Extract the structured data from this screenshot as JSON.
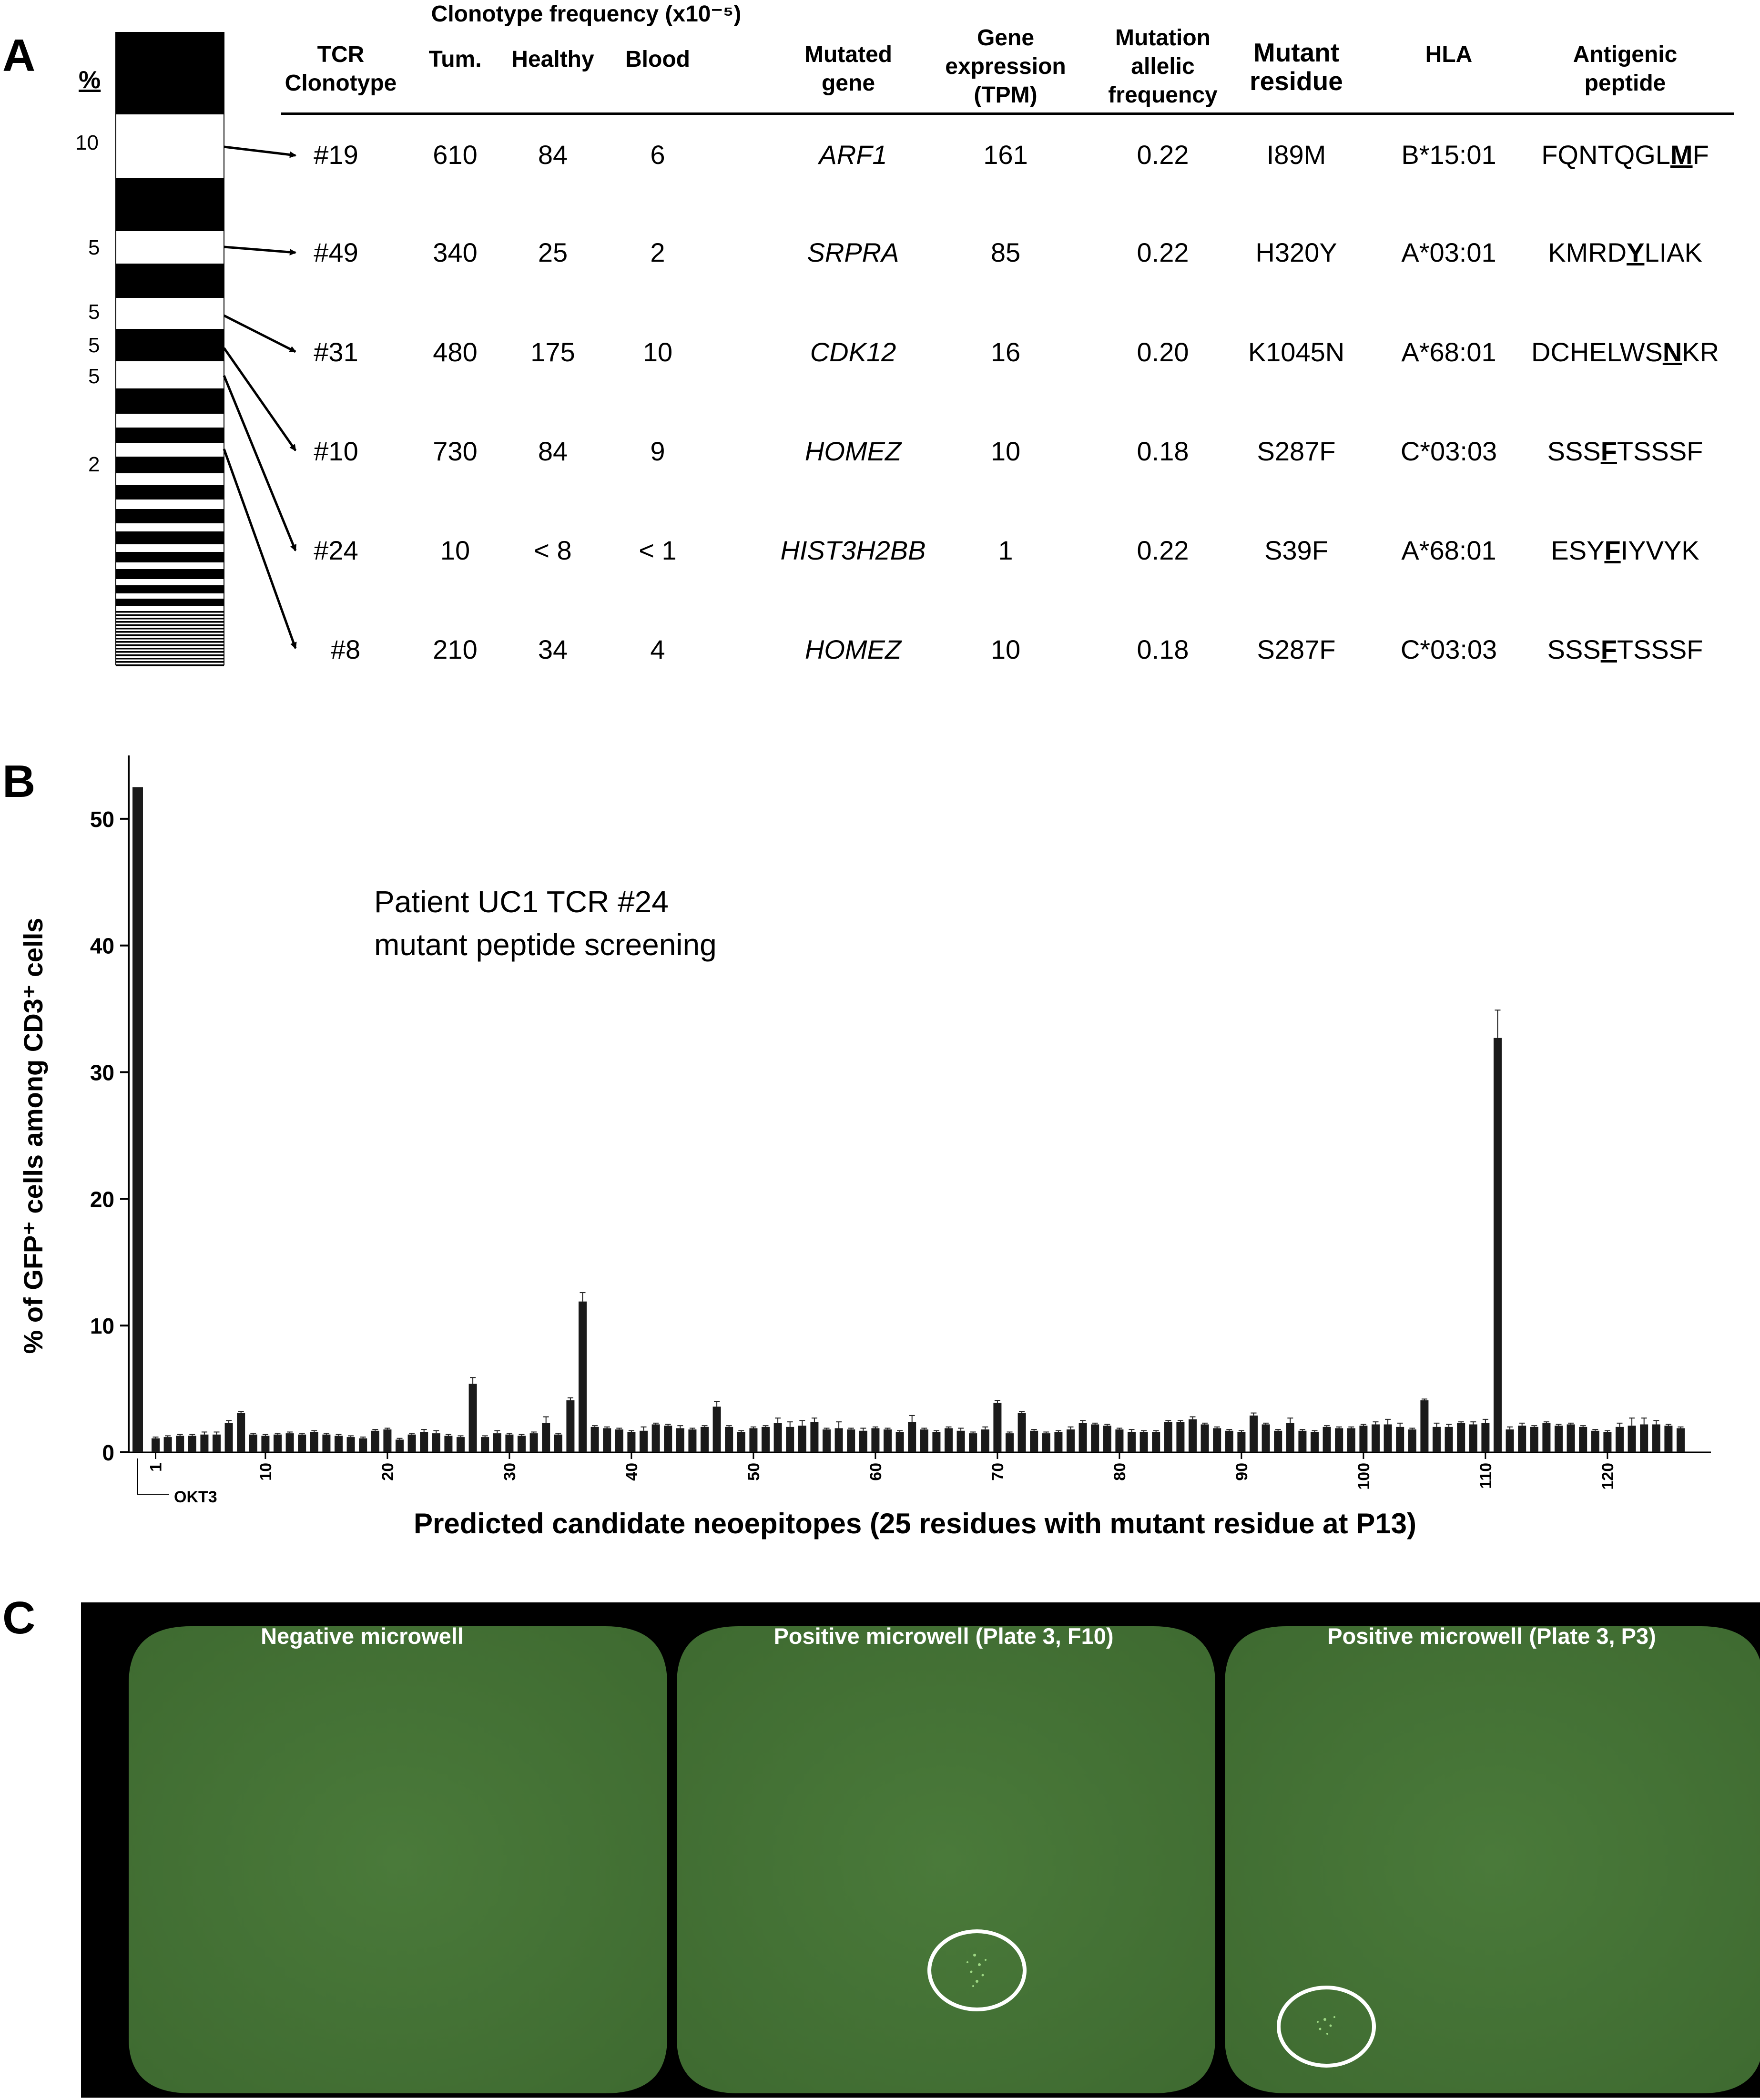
{
  "panel_a": {
    "letter": "A",
    "pct_header": "%",
    "pct_labels": [
      "10",
      "5",
      "5",
      "5",
      "5",
      "2"
    ],
    "freq_group_header": "Clonotype frequency (x10⁻⁵)",
    "headers": {
      "tcr": "TCR\nClonotype",
      "tum": "Tum.",
      "healthy": "Healthy",
      "blood": "Blood",
      "gene": "Mutated\ngene",
      "expr": "Gene\nexpression\n(TPM)",
      "maf": "Mutation\nallelic\nfrequency",
      "residue": "Mutant\nresidue",
      "hla": "HLA",
      "peptide": "Antigenic\npeptide"
    },
    "rows": [
      {
        "tcr": "#19",
        "tum": "610",
        "healthy": "84",
        "blood": "6",
        "gene": "ARF1",
        "expr": "161",
        "maf": "0.22",
        "residue": "I89M",
        "hla": "B*15:01",
        "pep_pre": "FQNTQGL",
        "pep_mut": "M",
        "pep_post": "F"
      },
      {
        "tcr": "#49",
        "tum": "340",
        "healthy": "25",
        "blood": "2",
        "gene": "SRPRA",
        "expr": "85",
        "maf": "0.22",
        "residue": "H320Y",
        "hla": "A*03:01",
        "pep_pre": "KMRD",
        "pep_mut": "Y",
        "pep_post": "LIAK"
      },
      {
        "tcr": "#31",
        "tum": "480",
        "healthy": "175",
        "blood": "10",
        "gene": "CDK12",
        "expr": "16",
        "maf": "0.20",
        "residue": "K1045N",
        "hla": "A*68:01",
        "pep_pre": "DCHELWS",
        "pep_mut": "N",
        "pep_post": "KR"
      },
      {
        "tcr": "#10",
        "tum": "730",
        "healthy": "84",
        "blood": "9",
        "gene": "HOMEZ",
        "expr": "10",
        "maf": "0.18",
        "residue": "S287F",
        "hla": "C*03:03",
        "pep_pre": "SSS",
        "pep_mut": "F",
        "pep_post": "TSSSF"
      },
      {
        "tcr": "#24",
        "tum": "10",
        "healthy": "< 8",
        "blood": "< 1",
        "gene": "HIST3H2BB",
        "expr": "1",
        "maf": "0.22",
        "residue": "S39F",
        "hla": "A*68:01",
        "pep_pre": "ESY",
        "pep_mut": "F",
        "pep_post": "IYVYK"
      },
      {
        "tcr": "#8",
        "tum": "210",
        "healthy": "34",
        "blood": "4",
        "gene": "HOMEZ",
        "expr": "10",
        "maf": "0.18",
        "residue": "S287F",
        "hla": "C*03:03",
        "pep_pre": "SSS",
        "pep_mut": "F",
        "pep_post": "TSSSF"
      }
    ]
  },
  "panel_b": {
    "letter": "B",
    "annotation_line1": "Patient UC1  TCR #24",
    "annotation_line2": "mutant peptide screening",
    "okt3_label": "OKT3"
  },
  "chart_data": {
    "type": "bar",
    "ylabel": "% of GFP⁺ cells among CD3⁺ cells",
    "xlabel": "Predicted candidate neoepitopes  (25 residues with mutant residue at P13)",
    "ylim": [
      0,
      55
    ],
    "yticks": [
      0,
      10,
      20,
      30,
      40,
      50
    ],
    "xticks": [
      "1",
      "10",
      "20",
      "30",
      "40",
      "50",
      "60",
      "70",
      "80",
      "90",
      "100",
      "110",
      "120"
    ],
    "control": {
      "name": "OKT3",
      "value": 52.5
    },
    "values": [
      1.1,
      1.2,
      1.3,
      1.3,
      1.4,
      1.4,
      2.3,
      3.1,
      1.4,
      1.3,
      1.4,
      1.5,
      1.4,
      1.6,
      1.4,
      1.3,
      1.2,
      1.1,
      1.7,
      1.8,
      1.0,
      1.4,
      1.6,
      1.5,
      1.3,
      1.2,
      5.4,
      1.2,
      1.5,
      1.4,
      1.3,
      1.5,
      2.3,
      1.4,
      4.1,
      11.9,
      2.0,
      1.9,
      1.8,
      1.6,
      1.7,
      2.2,
      2.1,
      1.9,
      1.8,
      2.0,
      3.6,
      2.0,
      1.6,
      1.9,
      2.0,
      2.3,
      2.0,
      2.1,
      2.4,
      1.8,
      1.9,
      1.8,
      1.7,
      1.9,
      1.8,
      1.6,
      2.4,
      1.8,
      1.6,
      1.9,
      1.7,
      1.5,
      1.8,
      3.9,
      1.5,
      3.1,
      1.7,
      1.5,
      1.6,
      1.8,
      2.3,
      2.2,
      2.1,
      1.8,
      1.6,
      1.6,
      1.6,
      2.4,
      2.4,
      2.6,
      2.2,
      1.9,
      1.7,
      1.6,
      2.9,
      2.2,
      1.7,
      2.3,
      1.7,
      1.6,
      2.0,
      1.9,
      1.9,
      2.1,
      2.2,
      2.2,
      2.0,
      1.8,
      4.1,
      2.0,
      2.0,
      2.3,
      2.2,
      2.3,
      32.7,
      1.8,
      2.1,
      2.0,
      2.3,
      2.1,
      2.2,
      2.0,
      1.7,
      1.6,
      2.0,
      2.1,
      2.2,
      2.2,
      2.1,
      1.9
    ],
    "errors": [
      0.1,
      0.1,
      0.1,
      0.1,
      0.2,
      0.2,
      0.2,
      0.1,
      0.1,
      0.1,
      0.1,
      0.1,
      0.1,
      0.1,
      0.1,
      0.1,
      0.1,
      0.1,
      0.1,
      0.1,
      0.1,
      0.1,
      0.2,
      0.2,
      0.1,
      0.1,
      0.5,
      0.1,
      0.2,
      0.1,
      0.1,
      0.1,
      0.5,
      0.1,
      0.2,
      0.7,
      0.1,
      0.1,
      0.1,
      0.1,
      0.3,
      0.1,
      0.1,
      0.2,
      0.1,
      0.1,
      0.4,
      0.1,
      0.1,
      0.1,
      0.1,
      0.4,
      0.4,
      0.4,
      0.3,
      0.1,
      0.5,
      0.1,
      0.2,
      0.1,
      0.1,
      0.1,
      0.5,
      0.1,
      0.1,
      0.1,
      0.2,
      0.1,
      0.2,
      0.2,
      0.1,
      0.1,
      0.1,
      0.1,
      0.1,
      0.2,
      0.2,
      0.1,
      0.1,
      0.1,
      0.2,
      0.1,
      0.1,
      0.1,
      0.1,
      0.2,
      0.1,
      0.1,
      0.1,
      0.1,
      0.2,
      0.1,
      0.1,
      0.4,
      0.1,
      0.1,
      0.1,
      0.1,
      0.1,
      0.1,
      0.2,
      0.4,
      0.3,
      0.1,
      0.1,
      0.3,
      0.2,
      0.1,
      0.2,
      0.3,
      2.2,
      0.2,
      0.2,
      0.1,
      0.1,
      0.1,
      0.1,
      0.1,
      0.1,
      0.1,
      0.3,
      0.6,
      0.5,
      0.3,
      0.1,
      0.1
    ]
  },
  "panel_c": {
    "letter": "C",
    "wells": [
      {
        "label": "Negative microwell"
      },
      {
        "label": "Positive microwell (Plate 3, F10)"
      },
      {
        "label": "Positive microwell (Plate 3, P3)"
      }
    ]
  }
}
